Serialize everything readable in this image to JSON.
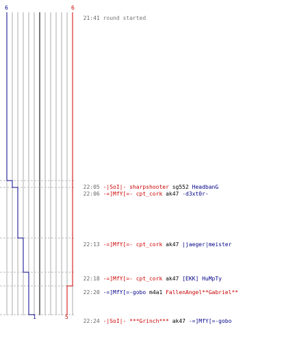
{
  "colors": {
    "team_red": "#cc0000",
    "team_blue": "#000088",
    "grid": "#aaaaaa",
    "dash": "#bbbbbb",
    "time": "#666666",
    "weapon": "#000000",
    "system": "#777777"
  },
  "scores": {
    "blue_start": "6",
    "red_start": "6",
    "blue_end": "1",
    "red_end": "5"
  },
  "events": [
    {
      "time": "22:05",
      "killer": "-|SoI|- sharpshooter",
      "killer_team": "red",
      "weapon": "sg552",
      "victim": "HeadbanG",
      "victim_team": "blue",
      "blue_alive": 5,
      "red_alive": 6
    },
    {
      "time": "22:06",
      "killer": "-=]MfY[=- cpt_cork",
      "killer_team": "red",
      "weapon": "ak47",
      "victim": "-d3xt0r-",
      "victim_team": "blue",
      "blue_alive": 4,
      "red_alive": 6
    },
    {
      "time": "22:13",
      "killer": "-=]MfY[=- cpt_cork",
      "killer_team": "red",
      "weapon": "ak47",
      "victim": "|jaeger|meister",
      "victim_team": "blue",
      "blue_alive": 3,
      "red_alive": 6
    },
    {
      "time": "22:18",
      "killer": "-=]MfY[=- cpt_cork",
      "killer_team": "red",
      "weapon": "ak47",
      "victim": "[EKK] HuMpTy",
      "victim_team": "blue",
      "blue_alive": 2,
      "red_alive": 6
    },
    {
      "time": "22:20",
      "killer": "-=]MfY[=-gobo",
      "killer_team": "blue",
      "weapon": "m4a1",
      "victim": "FallenAngel**Gabriel**",
      "victim_team": "red",
      "blue_alive": 2,
      "red_alive": 5
    },
    {
      "time": "22:24",
      "killer": "-|SoI|- ***Grinch***",
      "killer_team": "red",
      "weapon": "ak47",
      "victim": "-=]MfY[=-gobo",
      "victim_team": "blue",
      "blue_alive": 1,
      "red_alive": 5
    }
  ],
  "round_start": {
    "time": "21:41",
    "text": "round started"
  }
}
